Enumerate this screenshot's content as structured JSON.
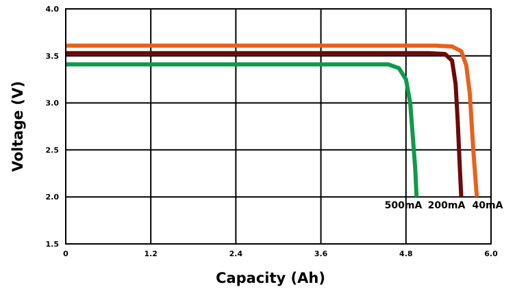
{
  "chart_data": {
    "type": "line",
    "title": "",
    "xlabel": "Capacity (Ah)",
    "ylabel": "Voltage (V)",
    "xlim": [
      0,
      6.0
    ],
    "ylim": [
      1.5,
      4.0
    ],
    "x_ticks": [
      "0",
      "1.2",
      "2.4",
      "3.6",
      "4.8",
      "6.0"
    ],
    "y_ticks": [
      "1.5",
      "2.0",
      "2.5",
      "3.0",
      "3.5",
      "4.0"
    ],
    "grid": true,
    "series": [
      {
        "name": "40mA",
        "color": "#e8601c",
        "points": [
          [
            0,
            3.61
          ],
          [
            5.2,
            3.61
          ],
          [
            5.45,
            3.6
          ],
          [
            5.58,
            3.55
          ],
          [
            5.65,
            3.4
          ],
          [
            5.7,
            3.1
          ],
          [
            5.75,
            2.5
          ],
          [
            5.78,
            2.2
          ],
          [
            5.8,
            2.0
          ]
        ]
      },
      {
        "name": "200mA",
        "color": "#6b0a0a",
        "points": [
          [
            0,
            3.53
          ],
          [
            5.1,
            3.53
          ],
          [
            5.35,
            3.52
          ],
          [
            5.45,
            3.45
          ],
          [
            5.5,
            3.2
          ],
          [
            5.53,
            2.8
          ],
          [
            5.56,
            2.3
          ],
          [
            5.58,
            2.0
          ]
        ]
      },
      {
        "name": "500mA",
        "color": "#0f9a4a",
        "points": [
          [
            0,
            3.41
          ],
          [
            4.55,
            3.41
          ],
          [
            4.7,
            3.37
          ],
          [
            4.8,
            3.25
          ],
          [
            4.86,
            3.0
          ],
          [
            4.9,
            2.6
          ],
          [
            4.93,
            2.3
          ],
          [
            4.95,
            2.0
          ]
        ]
      }
    ]
  }
}
